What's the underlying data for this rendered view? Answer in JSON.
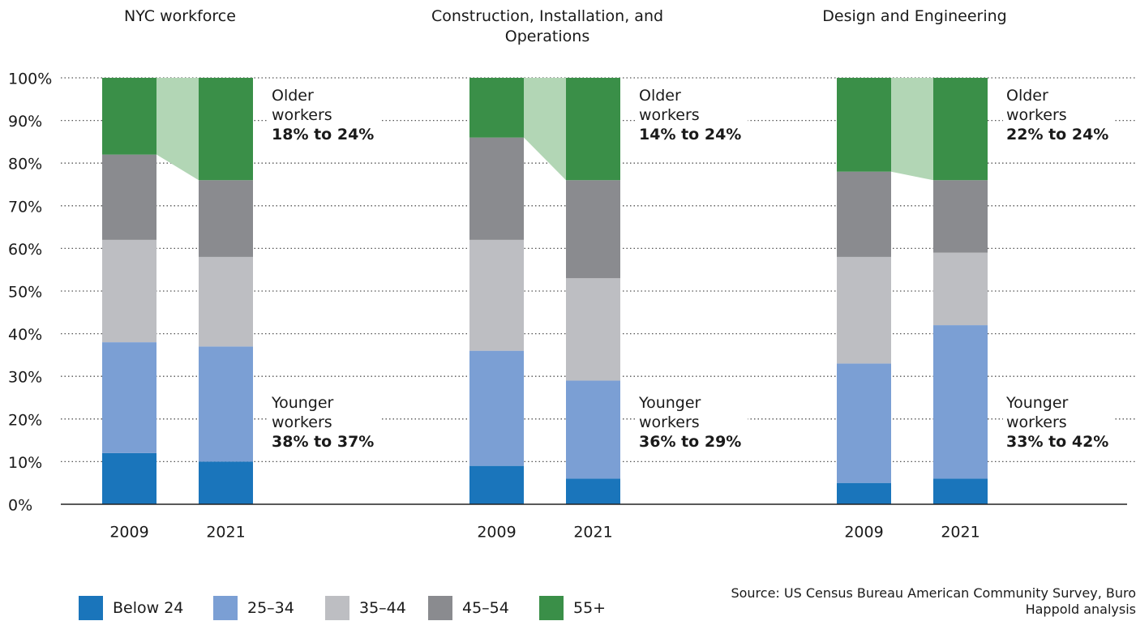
{
  "chart_data": {
    "type": "bar",
    "stacked": true,
    "categories": [
      "2009",
      "2021",
      "2009",
      "2021",
      "2009",
      "2021"
    ],
    "groups": [
      {
        "title": "NYC workforce",
        "annotations": [
          {
            "label": "Older workers",
            "value": "18% to 24%"
          },
          {
            "label": "Younger workers",
            "value": "38% to 37%"
          }
        ]
      },
      {
        "title": "Construction, Installation, and Operations",
        "annotations": [
          {
            "label": "Older workers",
            "value": "14% to 24%"
          },
          {
            "label": "Younger workers",
            "value": "36% to 29%"
          }
        ]
      },
      {
        "title": "Design and Engineering",
        "annotations": [
          {
            "label": "Older workers",
            "value": "22% to 24%"
          },
          {
            "label": "Younger workers",
            "value": "33% to 42%"
          }
        ]
      }
    ],
    "series": [
      {
        "name": "Below 24",
        "color": "#1a75bb",
        "values": [
          12,
          10,
          9,
          6,
          5,
          6
        ]
      },
      {
        "name": "25–34",
        "color": "#7b9fd4",
        "values": [
          26,
          27,
          27,
          23,
          28,
          36
        ]
      },
      {
        "name": "35–44",
        "color": "#bdbec2",
        "values": [
          24,
          21,
          26,
          24,
          25,
          17
        ]
      },
      {
        "name": "45–54",
        "color": "#8a8b8f",
        "values": [
          20,
          18,
          24,
          23,
          20,
          17
        ]
      },
      {
        "name": "55+",
        "color": "#3a8f48",
        "values": [
          18,
          24,
          14,
          24,
          22,
          24
        ]
      }
    ],
    "ylim": [
      0,
      100
    ],
    "yticks": [
      {
        "value": 0,
        "label": "0%"
      },
      {
        "value": 10,
        "label": "10%"
      },
      {
        "value": 20,
        "label": "20%"
      },
      {
        "value": 30,
        "label": "30%"
      },
      {
        "value": 40,
        "label": "40%"
      },
      {
        "value": 50,
        "label": "50%"
      },
      {
        "value": 60,
        "label": "60%"
      },
      {
        "value": 70,
        "label": "70%"
      },
      {
        "value": 80,
        "label": "80%"
      },
      {
        "value": 90,
        "label": "90%"
      },
      {
        "value": 100,
        "label": "100%"
      }
    ],
    "grid": true,
    "source": "Source: US Census Bureau American Community Survey, Buro Happold analysis"
  }
}
